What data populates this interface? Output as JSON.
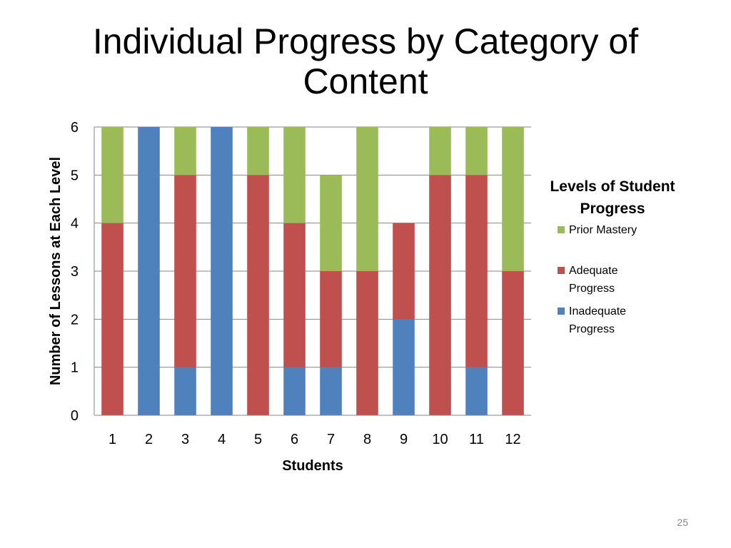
{
  "slide": {
    "title_line1": "Individual Progress by Category of",
    "title_line2": "Content",
    "page_number": "25"
  },
  "chart_data": {
    "type": "bar",
    "stacked": true,
    "categories": [
      "1",
      "2",
      "3",
      "4",
      "5",
      "6",
      "7",
      "8",
      "9",
      "10",
      "11",
      "12"
    ],
    "series": [
      {
        "name": "Inadequate Progress",
        "color": "#4f81bd",
        "values": [
          0,
          6,
          1,
          6,
          0,
          1,
          1,
          0,
          2,
          0,
          1,
          0
        ]
      },
      {
        "name": "Adequate Progress",
        "color": "#c0504d",
        "values": [
          4,
          0,
          4,
          0,
          5,
          3,
          2,
          3,
          2,
          5,
          4,
          3
        ]
      },
      {
        "name": "Prior Mastery",
        "color": "#9bbb59",
        "values": [
          2,
          0,
          1,
          0,
          1,
          2,
          2,
          3,
          0,
          1,
          1,
          3
        ]
      }
    ],
    "xlabel": "Students",
    "ylabel": "Number of Lessons at Each Level",
    "ylim": [
      0,
      6
    ],
    "yticks": [
      "0",
      "1",
      "2",
      "3",
      "4",
      "5",
      "6"
    ],
    "grid": true,
    "legend": {
      "title_line1": "Levels of Student",
      "title_line2": "Progress",
      "placement": "right",
      "items": [
        {
          "label_line1": "Prior Mastery",
          "label_line2": "",
          "color": "#9bbb59"
        },
        {
          "label_line1": "Adequate",
          "label_line2": "Progress",
          "color": "#c0504d"
        },
        {
          "label_line1": "Inadequate",
          "label_line2": "Progress",
          "color": "#4f81bd"
        }
      ]
    }
  }
}
